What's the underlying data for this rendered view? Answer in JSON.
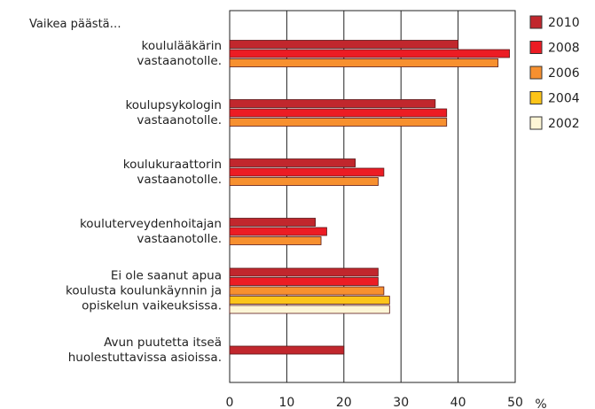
{
  "chart_data": {
    "type": "bar",
    "orientation": "horizontal",
    "subtitle": "Vaikea päästä…",
    "x_label": "%",
    "categories": [
      "koululääkärin\nvastaanotolle.",
      "koulupsykologin\nvastaanotolle.",
      "koulukuraattorin\nvastaanotolle.",
      "kouluterveydenhoitajan\nvastaanotolle.",
      "Ei ole saanut apua\nkoulusta koulunkäynnin ja\nopiskelun vaikeuksissa.",
      "Avun puutetta itseä\nhuolestuttavissa asioissa."
    ],
    "series": [
      {
        "name": "2010",
        "color": "#c1272d",
        "values": [
          40,
          36,
          22,
          15,
          26,
          20
        ]
      },
      {
        "name": "2008",
        "color": "#ec1c24",
        "values": [
          49,
          38,
          27,
          17,
          26,
          null
        ]
      },
      {
        "name": "2006",
        "color": "#f7902f",
        "values": [
          47,
          38,
          26,
          16,
          27,
          null
        ]
      },
      {
        "name": "2004",
        "color": "#fcc419",
        "values": [
          null,
          null,
          null,
          null,
          28,
          null
        ]
      },
      {
        "name": "2002",
        "color": "#fdf6d6",
        "values": [
          null,
          null,
          null,
          null,
          28,
          null
        ]
      }
    ],
    "xlim": [
      0,
      50
    ],
    "xticks": [
      0,
      10,
      20,
      30,
      40,
      50
    ],
    "grid": true,
    "legend": "right"
  }
}
